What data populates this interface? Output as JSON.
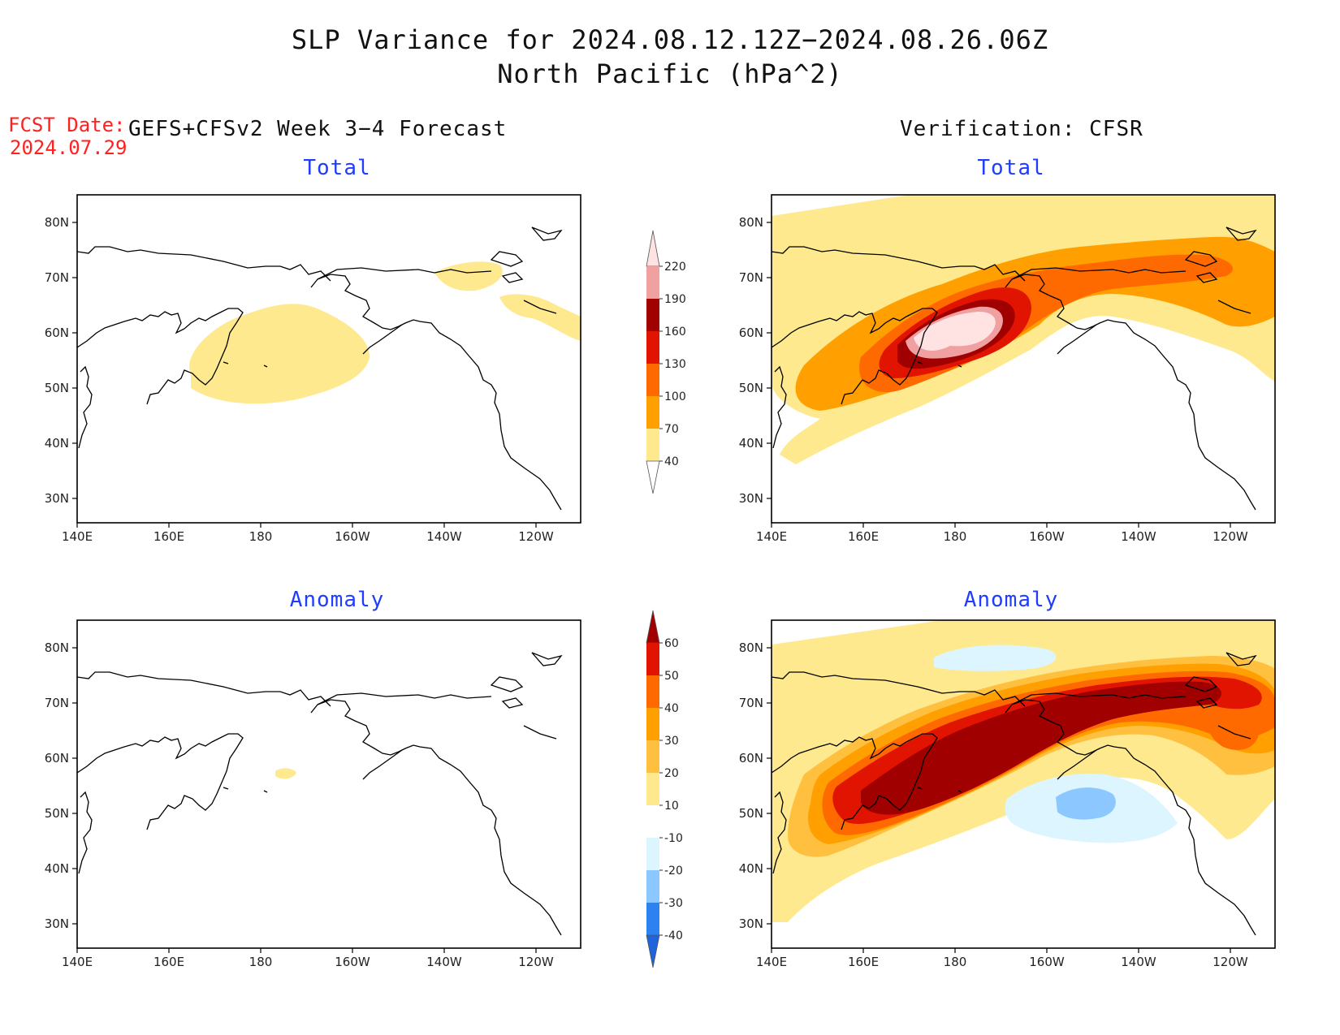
{
  "title": {
    "line1": "SLP Variance for 2024.08.12.12Z−2024.08.26.06Z",
    "line2": "North Pacific (hPa^2)"
  },
  "fcst": {
    "label": "FCST Date:",
    "date": "2024.07.29"
  },
  "headers": {
    "left": "GEFS+CFSv2 Week 3−4 Forecast",
    "right": "Verification: CFSR"
  },
  "panels": {
    "fcst_total": "Total",
    "fcst_anomaly": "Anomaly",
    "ver_total": "Total",
    "ver_anomaly": "Anomaly"
  },
  "axes": {
    "lat_labels": [
      "80N",
      "70N",
      "60N",
      "50N",
      "40N",
      "30N"
    ],
    "lon_labels": [
      "140E",
      "160E",
      "180",
      "160W",
      "140W",
      "120W"
    ]
  },
  "colorbars": {
    "total": {
      "levels": [
        "40",
        "70",
        "100",
        "130",
        "160",
        "190",
        "220"
      ],
      "colors": [
        "#ffffff",
        "#fee98f",
        "#ffa000",
        "#ff6a00",
        "#e01400",
        "#a00000",
        "#f0a0a0",
        "#ffe2e2"
      ]
    },
    "anomaly": {
      "levels": [
        "-40",
        "-30",
        "-20",
        "-10",
        "10",
        "20",
        "30",
        "40",
        "50",
        "60"
      ],
      "colors": [
        "#1e64dc",
        "#2d82f0",
        "#8cc8ff",
        "#dcf5ff",
        "#ffffff",
        "#fee98f",
        "#ffc040",
        "#ffa000",
        "#ff6a00",
        "#e01400",
        "#a00000"
      ]
    }
  }
}
